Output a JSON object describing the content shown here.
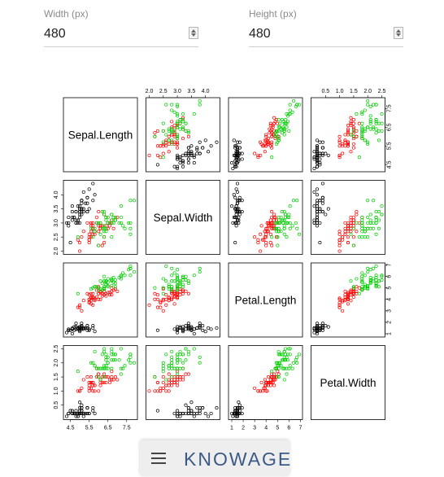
{
  "width_field": {
    "label": "Width (px)",
    "value": "480"
  },
  "height_field": {
    "label": "Height (px)",
    "value": "480"
  },
  "brand": {
    "text": "KNOWAGE"
  },
  "colors": {
    "setosa": "#000000",
    "versicolor": "#ff0000",
    "virginica": "#00cd00"
  },
  "chart_data": {
    "type": "scatter",
    "subtype": "scatterplot-matrix",
    "variables": [
      "Sepal.Length",
      "Sepal.Width",
      "Petal.Length",
      "Petal.Width"
    ],
    "ranges": [
      [
        4.3,
        7.9
      ],
      [
        2.0,
        4.4
      ],
      [
        1.0,
        6.9
      ],
      [
        0.1,
        2.5
      ]
    ],
    "ticks": [
      [
        4.5,
        5.5,
        6.5,
        7.5
      ],
      [
        2.0,
        2.5,
        3.0,
        3.5,
        4.0
      ],
      [
        1,
        2,
        3,
        4,
        5,
        6,
        7
      ],
      [
        0.5,
        1.0,
        1.5,
        2.0,
        2.5
      ]
    ],
    "grid": false,
    "series": [
      {
        "color": "#000000",
        "points": [
          [
            5.1,
            3.5,
            1.4,
            0.2
          ],
          [
            4.9,
            3.0,
            1.4,
            0.2
          ],
          [
            4.7,
            3.2,
            1.3,
            0.2
          ],
          [
            4.6,
            3.1,
            1.5,
            0.2
          ],
          [
            5.0,
            3.6,
            1.4,
            0.2
          ],
          [
            5.4,
            3.9,
            1.7,
            0.4
          ],
          [
            4.6,
            3.4,
            1.4,
            0.3
          ],
          [
            5.0,
            3.4,
            1.5,
            0.2
          ],
          [
            4.4,
            2.9,
            1.4,
            0.2
          ],
          [
            4.9,
            3.1,
            1.5,
            0.1
          ],
          [
            5.4,
            3.7,
            1.5,
            0.2
          ],
          [
            4.8,
            3.4,
            1.6,
            0.2
          ],
          [
            4.8,
            3.0,
            1.4,
            0.1
          ],
          [
            4.3,
            3.0,
            1.1,
            0.1
          ],
          [
            5.8,
            4.0,
            1.2,
            0.2
          ],
          [
            5.7,
            4.4,
            1.5,
            0.4
          ],
          [
            5.4,
            3.9,
            1.3,
            0.4
          ],
          [
            5.1,
            3.5,
            1.4,
            0.3
          ],
          [
            5.7,
            3.8,
            1.7,
            0.3
          ],
          [
            5.1,
            3.8,
            1.5,
            0.3
          ],
          [
            5.4,
            3.4,
            1.7,
            0.2
          ],
          [
            5.1,
            3.7,
            1.5,
            0.4
          ],
          [
            4.6,
            3.6,
            1.0,
            0.2
          ],
          [
            5.1,
            3.3,
            1.7,
            0.5
          ],
          [
            4.8,
            3.4,
            1.9,
            0.2
          ],
          [
            5.0,
            3.0,
            1.6,
            0.2
          ],
          [
            5.0,
            3.4,
            1.6,
            0.4
          ],
          [
            5.2,
            3.5,
            1.5,
            0.2
          ],
          [
            5.2,
            3.4,
            1.4,
            0.2
          ],
          [
            4.7,
            3.2,
            1.6,
            0.2
          ],
          [
            4.8,
            3.1,
            1.6,
            0.2
          ],
          [
            5.4,
            3.4,
            1.5,
            0.4
          ],
          [
            5.2,
            4.1,
            1.5,
            0.1
          ],
          [
            5.5,
            4.2,
            1.4,
            0.2
          ],
          [
            4.9,
            3.1,
            1.5,
            0.2
          ],
          [
            5.0,
            3.2,
            1.2,
            0.2
          ],
          [
            5.5,
            3.5,
            1.3,
            0.2
          ],
          [
            4.9,
            3.6,
            1.4,
            0.1
          ],
          [
            4.4,
            3.0,
            1.3,
            0.2
          ],
          [
            5.1,
            3.4,
            1.5,
            0.2
          ],
          [
            5.0,
            3.5,
            1.3,
            0.3
          ],
          [
            4.5,
            2.3,
            1.3,
            0.3
          ],
          [
            4.4,
            3.2,
            1.3,
            0.2
          ],
          [
            5.0,
            3.5,
            1.6,
            0.6
          ],
          [
            5.1,
            3.8,
            1.9,
            0.4
          ],
          [
            4.8,
            3.0,
            1.4,
            0.3
          ],
          [
            5.1,
            3.8,
            1.6,
            0.2
          ],
          [
            4.6,
            3.2,
            1.4,
            0.2
          ],
          [
            5.3,
            3.7,
            1.5,
            0.2
          ],
          [
            5.0,
            3.3,
            1.4,
            0.2
          ]
        ]
      },
      {
        "color": "#ff0000",
        "points": [
          [
            7.0,
            3.2,
            4.7,
            1.4
          ],
          [
            6.4,
            3.2,
            4.5,
            1.5
          ],
          [
            6.9,
            3.1,
            4.9,
            1.5
          ],
          [
            5.5,
            2.3,
            4.0,
            1.3
          ],
          [
            6.5,
            2.8,
            4.6,
            1.5
          ],
          [
            5.7,
            2.8,
            4.5,
            1.3
          ],
          [
            6.3,
            3.3,
            4.7,
            1.6
          ],
          [
            4.9,
            2.4,
            3.3,
            1.0
          ],
          [
            6.6,
            2.9,
            4.6,
            1.3
          ],
          [
            5.2,
            2.7,
            3.9,
            1.4
          ],
          [
            5.0,
            2.0,
            3.5,
            1.0
          ],
          [
            5.9,
            3.0,
            4.2,
            1.5
          ],
          [
            6.0,
            2.2,
            4.0,
            1.0
          ],
          [
            6.1,
            2.9,
            4.7,
            1.4
          ],
          [
            5.6,
            2.9,
            3.6,
            1.3
          ],
          [
            6.7,
            3.1,
            4.4,
            1.4
          ],
          [
            5.6,
            3.0,
            4.5,
            1.5
          ],
          [
            5.8,
            2.7,
            4.1,
            1.0
          ],
          [
            6.2,
            2.2,
            4.5,
            1.5
          ],
          [
            5.6,
            2.5,
            3.9,
            1.1
          ],
          [
            5.9,
            3.2,
            4.8,
            1.8
          ],
          [
            6.1,
            2.8,
            4.0,
            1.3
          ],
          [
            6.3,
            2.5,
            4.9,
            1.5
          ],
          [
            6.1,
            2.8,
            4.7,
            1.2
          ],
          [
            6.4,
            2.9,
            4.3,
            1.3
          ],
          [
            6.6,
            3.0,
            4.4,
            1.4
          ],
          [
            6.8,
            2.8,
            4.8,
            1.4
          ],
          [
            6.7,
            3.0,
            5.0,
            1.7
          ],
          [
            6.0,
            2.9,
            4.5,
            1.5
          ],
          [
            5.7,
            2.6,
            3.5,
            1.0
          ],
          [
            5.5,
            2.4,
            3.8,
            1.1
          ],
          [
            5.5,
            2.4,
            3.7,
            1.0
          ],
          [
            5.8,
            2.7,
            3.9,
            1.2
          ],
          [
            6.0,
            2.7,
            5.1,
            1.6
          ],
          [
            5.4,
            3.0,
            4.5,
            1.5
          ],
          [
            6.0,
            3.4,
            4.5,
            1.6
          ],
          [
            6.7,
            3.1,
            4.7,
            1.5
          ],
          [
            6.3,
            2.3,
            4.4,
            1.3
          ],
          [
            5.6,
            3.0,
            4.1,
            1.3
          ],
          [
            5.5,
            2.5,
            4.0,
            1.3
          ],
          [
            5.5,
            2.6,
            4.4,
            1.2
          ],
          [
            6.1,
            3.0,
            4.6,
            1.4
          ],
          [
            5.8,
            2.6,
            4.0,
            1.2
          ],
          [
            5.0,
            2.3,
            3.3,
            1.0
          ],
          [
            5.6,
            2.7,
            4.2,
            1.3
          ],
          [
            5.7,
            3.0,
            4.2,
            1.2
          ],
          [
            5.7,
            2.9,
            4.2,
            1.3
          ],
          [
            6.2,
            2.9,
            4.3,
            1.3
          ],
          [
            5.1,
            2.5,
            3.0,
            1.1
          ],
          [
            5.7,
            2.8,
            4.1,
            1.3
          ]
        ]
      },
      {
        "color": "#00cd00",
        "points": [
          [
            6.3,
            3.3,
            6.0,
            2.5
          ],
          [
            5.8,
            2.7,
            5.1,
            1.9
          ],
          [
            7.1,
            3.0,
            5.9,
            2.1
          ],
          [
            6.3,
            2.9,
            5.6,
            1.8
          ],
          [
            6.5,
            3.0,
            5.8,
            2.2
          ],
          [
            7.6,
            3.0,
            6.6,
            2.1
          ],
          [
            4.9,
            2.5,
            4.5,
            1.7
          ],
          [
            7.3,
            2.9,
            6.3,
            1.8
          ],
          [
            6.7,
            2.5,
            5.8,
            1.8
          ],
          [
            7.2,
            3.6,
            6.1,
            2.5
          ],
          [
            6.5,
            3.2,
            5.1,
            2.0
          ],
          [
            6.4,
            2.7,
            5.3,
            1.9
          ],
          [
            6.8,
            3.0,
            5.5,
            2.1
          ],
          [
            5.7,
            2.5,
            5.0,
            2.0
          ],
          [
            5.8,
            2.8,
            5.1,
            2.4
          ],
          [
            6.4,
            3.2,
            5.3,
            2.3
          ],
          [
            6.5,
            3.0,
            5.5,
            1.8
          ],
          [
            7.7,
            3.8,
            6.7,
            2.2
          ],
          [
            7.7,
            2.6,
            6.9,
            2.3
          ],
          [
            6.0,
            2.2,
            5.0,
            1.5
          ],
          [
            6.9,
            3.2,
            5.7,
            2.3
          ],
          [
            5.6,
            2.8,
            4.9,
            2.0
          ],
          [
            7.7,
            2.8,
            6.7,
            2.0
          ],
          [
            6.3,
            2.7,
            4.9,
            1.8
          ],
          [
            6.7,
            3.3,
            5.7,
            2.1
          ],
          [
            7.2,
            3.2,
            6.0,
            1.8
          ],
          [
            6.2,
            2.8,
            4.8,
            1.8
          ],
          [
            6.1,
            3.0,
            4.9,
            1.8
          ],
          [
            6.4,
            2.8,
            5.6,
            2.1
          ],
          [
            7.2,
            3.0,
            5.8,
            1.6
          ],
          [
            7.4,
            2.8,
            6.1,
            1.9
          ],
          [
            7.9,
            3.8,
            6.4,
            2.0
          ],
          [
            6.4,
            2.8,
            5.6,
            2.2
          ],
          [
            6.3,
            2.8,
            5.1,
            1.5
          ],
          [
            6.1,
            2.6,
            5.6,
            1.4
          ],
          [
            7.7,
            3.0,
            6.1,
            2.3
          ],
          [
            6.3,
            3.4,
            5.6,
            2.4
          ],
          [
            6.4,
            3.1,
            5.5,
            1.8
          ],
          [
            6.0,
            3.0,
            4.8,
            1.8
          ],
          [
            6.9,
            3.1,
            5.4,
            2.1
          ],
          [
            6.7,
            3.1,
            5.6,
            2.4
          ],
          [
            6.9,
            3.1,
            5.1,
            2.3
          ],
          [
            5.8,
            2.7,
            5.1,
            1.9
          ],
          [
            6.8,
            3.2,
            5.9,
            2.3
          ],
          [
            6.7,
            3.3,
            5.7,
            2.5
          ],
          [
            6.7,
            3.0,
            5.2,
            2.3
          ],
          [
            6.3,
            2.5,
            5.0,
            1.9
          ],
          [
            6.5,
            3.0,
            5.2,
            2.0
          ],
          [
            6.2,
            3.4,
            5.4,
            2.3
          ],
          [
            5.9,
            3.0,
            5.1,
            1.8
          ]
        ]
      }
    ]
  }
}
